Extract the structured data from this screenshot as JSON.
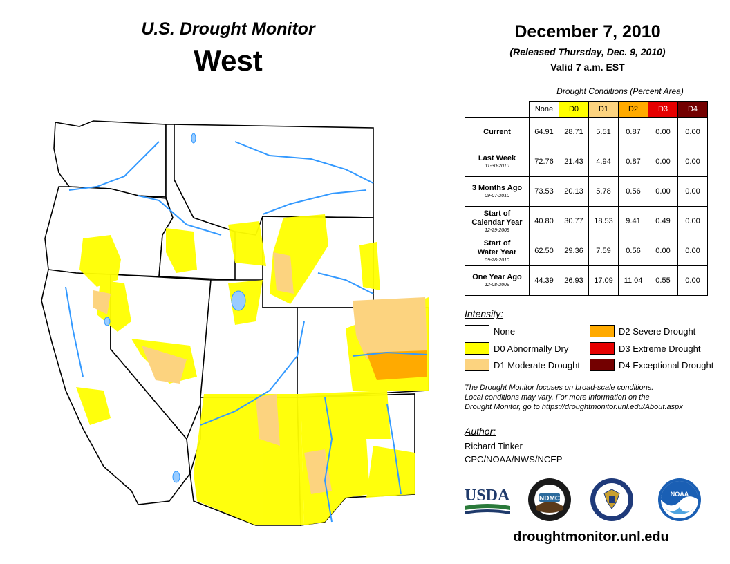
{
  "header": {
    "title": "U.S. Drought Monitor",
    "region": "West",
    "date": "December 7, 2010",
    "released": "(Released Thursday, Dec. 9, 2010)",
    "valid": "Valid 7 a.m. EST"
  },
  "table": {
    "caption": "Drought Conditions (Percent Area)",
    "columns": [
      {
        "label": "None",
        "color": "#ffffff"
      },
      {
        "label": "D0",
        "color": "#ffff00"
      },
      {
        "label": "D1",
        "color": "#fcd37f"
      },
      {
        "label": "D2",
        "color": "#ffaa00"
      },
      {
        "label": "D3",
        "color": "#e60000"
      },
      {
        "label": "D4",
        "color": "#730000"
      }
    ],
    "rows": [
      {
        "label": "Current",
        "label2": "",
        "sub": "",
        "values": [
          "64.91",
          "28.71",
          "5.51",
          "0.87",
          "0.00",
          "0.00"
        ]
      },
      {
        "label": "Last Week",
        "label2": "",
        "sub": "11-30-2010",
        "values": [
          "72.76",
          "21.43",
          "4.94",
          "0.87",
          "0.00",
          "0.00"
        ]
      },
      {
        "label": "3 Months Ago",
        "label2": "",
        "sub": "09-07-2010",
        "values": [
          "73.53",
          "20.13",
          "5.78",
          "0.56",
          "0.00",
          "0.00"
        ]
      },
      {
        "label": "Start of",
        "label2": "Calendar Year",
        "sub": "12-29-2009",
        "values": [
          "40.80",
          "30.77",
          "18.53",
          "9.41",
          "0.49",
          "0.00"
        ]
      },
      {
        "label": "Start of",
        "label2": "Water Year",
        "sub": "09-28-2010",
        "values": [
          "62.50",
          "29.36",
          "7.59",
          "0.56",
          "0.00",
          "0.00"
        ]
      },
      {
        "label": "One Year Ago",
        "label2": "",
        "sub": "12-08-2009",
        "values": [
          "44.39",
          "26.93",
          "17.09",
          "11.04",
          "0.55",
          "0.00"
        ]
      }
    ]
  },
  "legend": {
    "title": "Intensity:",
    "items": [
      {
        "label": "None",
        "color": "#ffffff"
      },
      {
        "label": "D0 Abnormally Dry",
        "color": "#ffff00"
      },
      {
        "label": "D1 Moderate Drought",
        "color": "#fcd37f"
      },
      {
        "label": "D2 Severe Drought",
        "color": "#ffaa00"
      },
      {
        "label": "D3 Extreme Drought",
        "color": "#e60000"
      },
      {
        "label": "D4 Exceptional Drought",
        "color": "#730000"
      }
    ]
  },
  "note": {
    "line1": "The Drought Monitor focuses on broad-scale conditions.",
    "line2": "Local conditions may vary. For more information on the",
    "line3": "Drought Monitor, go to https://droughtmonitor.unl.edu/About.aspx"
  },
  "author": {
    "title": "Author:",
    "name": "Richard Tinker",
    "org": "CPC/NOAA/NWS/NCEP"
  },
  "logos": {
    "usda": "USDA",
    "ndmc": "NDMC",
    "noaa": "NOAA"
  },
  "website": "droughtmonitor.unl.edu",
  "map_colors": {
    "none": "#ffffff",
    "d0": "#ffff00",
    "d1": "#fcd37f",
    "d2": "#ffaa00",
    "water": "#3399ff",
    "lake": "#99ccff"
  }
}
